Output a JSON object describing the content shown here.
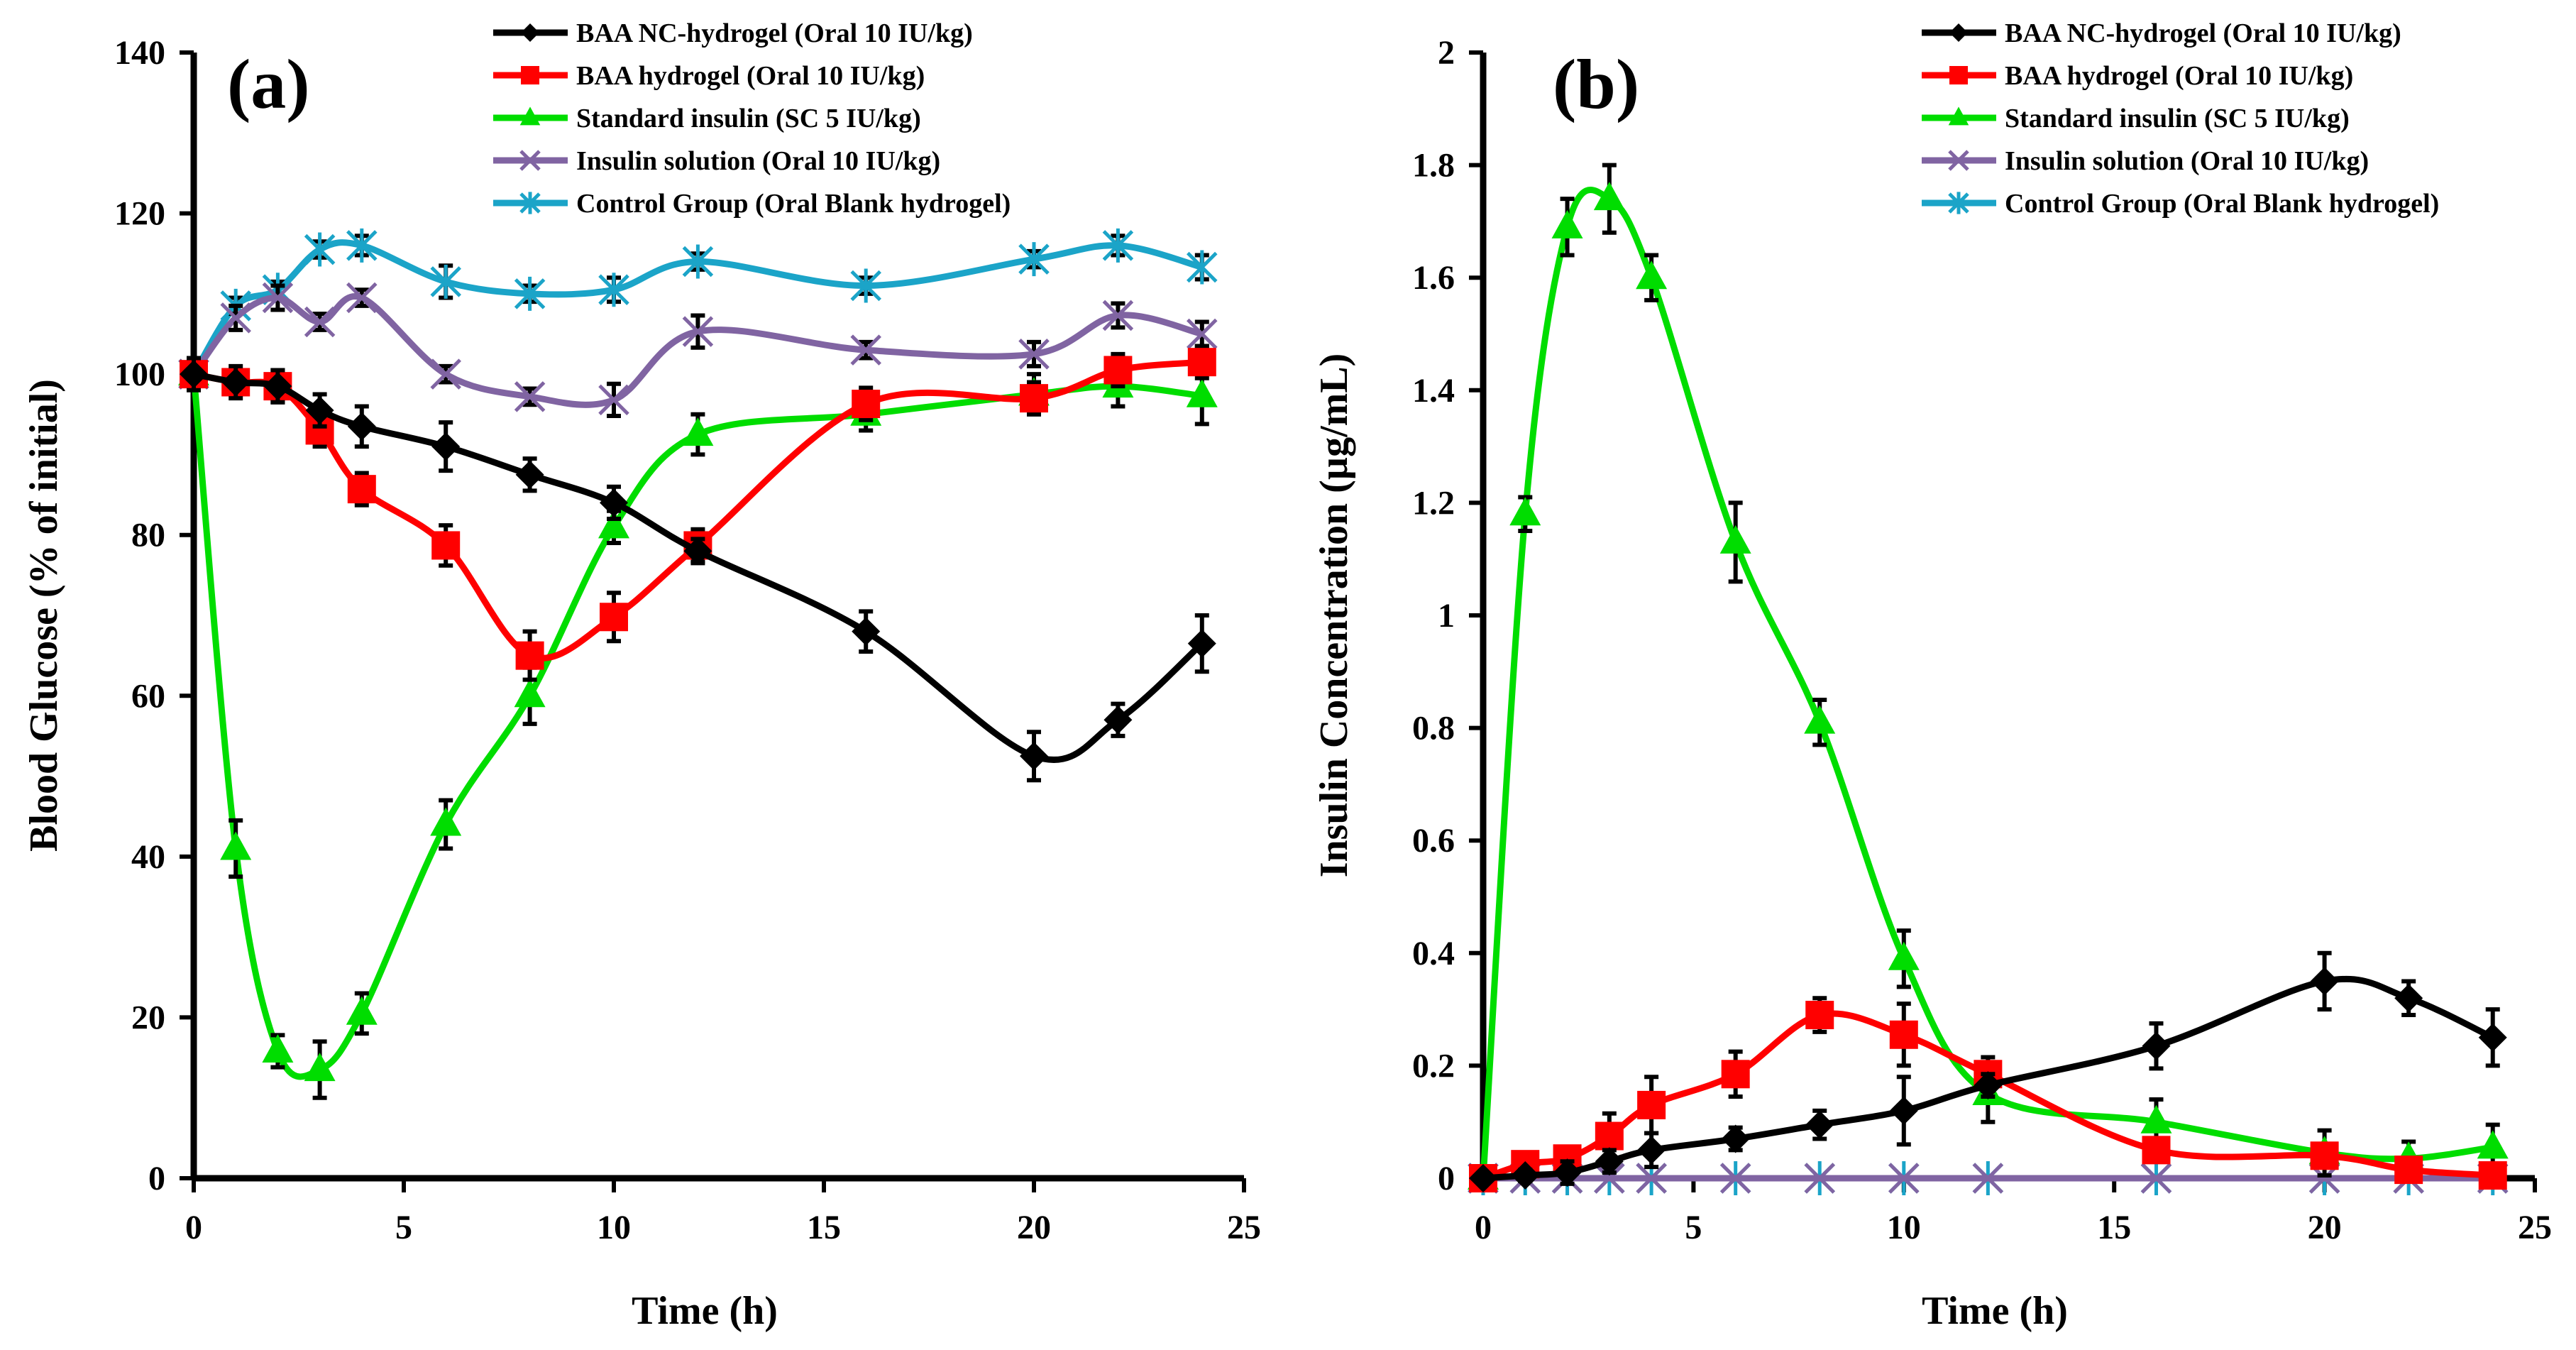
{
  "chart_data": [
    {
      "type": "line",
      "panel_label": "(a)",
      "xlabel": "Time (h)",
      "ylabel": "Blood Glucose (% of initial)",
      "xlim": [
        0,
        25
      ],
      "ylim": [
        0,
        140
      ],
      "xticks": [
        0,
        5,
        10,
        15,
        20,
        25
      ],
      "yticks": [
        0,
        20,
        40,
        60,
        80,
        100,
        120,
        140
      ],
      "grid": false,
      "legend_position": "top-right",
      "x": [
        0,
        1,
        2,
        3,
        4,
        6,
        8,
        10,
        12,
        16,
        20,
        22,
        24
      ],
      "series": [
        {
          "name": "BAA NC-hydrogel (Oral 10 IU/kg)",
          "color": "#000000",
          "marker": "diamond",
          "values": [
            100,
            99,
            98.5,
            95.5,
            93.5,
            91,
            87.5,
            84,
            78,
            68,
            52.5,
            57,
            66.5
          ],
          "errors": [
            2,
            2,
            2,
            2,
            2.5,
            3,
            2,
            2,
            1.5,
            2.5,
            3,
            2,
            3.5
          ]
        },
        {
          "name": "BAA hydrogel (Oral 10 IU/kg)",
          "color": "#ff0000",
          "marker": "square",
          "values": [
            100,
            99,
            98.5,
            93,
            85.7,
            78.7,
            65,
            69.8,
            78.7,
            96.3,
            97,
            100.5,
            101.5
          ],
          "errors": [
            1.5,
            1.5,
            2,
            2,
            2,
            2.5,
            3,
            3,
            2,
            2,
            2,
            2,
            2
          ]
        },
        {
          "name": "Standard insulin (SC 5 IU/kg)",
          "color": "#00dd00",
          "marker": "triangle",
          "values": [
            100,
            41,
            15.8,
            13.5,
            20.5,
            44,
            60,
            81,
            92.5,
            95,
            97.5,
            98.5,
            97.3
          ],
          "errors": [
            1.5,
            3.5,
            2,
            3.5,
            2.5,
            3,
            3.5,
            2,
            2.5,
            2,
            2.5,
            2.5,
            3.5
          ]
        },
        {
          "name": "Insulin solution (Oral 10 IU/kg)",
          "color": "#8064a2",
          "marker": "x",
          "values": [
            100,
            107,
            109.5,
            106.5,
            109.5,
            100,
            97.2,
            96.8,
            105.3,
            103,
            102.5,
            107.3,
            105
          ],
          "errors": [
            1,
            1.5,
            1.5,
            1,
            1,
            1,
            1,
            2,
            2,
            1,
            1.5,
            1.5,
            1.5
          ]
        },
        {
          "name": "Control Group (Oral Blank hydrogel)",
          "color": "#1ba4c8",
          "marker": "star",
          "values": [
            100,
            108.5,
            110.5,
            115.5,
            116,
            111.5,
            110,
            110.5,
            114,
            111,
            114.3,
            116,
            113.3
          ],
          "errors": [
            1,
            1,
            1,
            1,
            1.2,
            2,
            1,
            1.5,
            1,
            1,
            1,
            1.2,
            1.5
          ]
        }
      ]
    },
    {
      "type": "line",
      "panel_label": "(b)",
      "xlabel": "Time (h)",
      "ylabel": "Insulin Concentration (µg/mL)",
      "xlim": [
        0,
        25
      ],
      "ylim": [
        0,
        2
      ],
      "xticks": [
        0,
        5,
        10,
        15,
        20,
        25
      ],
      "yticks": [
        0,
        0.2,
        0.4,
        0.6,
        0.8,
        1,
        1.2,
        1.4,
        1.6,
        1.8,
        2
      ],
      "grid": false,
      "legend_position": "top-right",
      "x": [
        0,
        1,
        2,
        3,
        4,
        6,
        8,
        10,
        12,
        16,
        20,
        22,
        24
      ],
      "series": [
        {
          "name": "BAA NC-hydrogel (Oral 10 IU/kg)",
          "color": "#000000",
          "marker": "diamond",
          "values": [
            0,
            0.005,
            0.01,
            0.03,
            0.05,
            0.07,
            0.095,
            0.12,
            0.165,
            0.235,
            0.35,
            0.32,
            0.25
          ],
          "errors": [
            0,
            0.01,
            0.02,
            0.02,
            0.03,
            0.02,
            0.025,
            0.06,
            0.02,
            0.04,
            0.05,
            0.03,
            0.05
          ]
        },
        {
          "name": "BAA hydrogel (Oral 10 IU/kg)",
          "color": "#ff0000",
          "marker": "square",
          "values": [
            0,
            0.025,
            0.035,
            0.075,
            0.13,
            0.185,
            0.29,
            0.255,
            0.185,
            0.05,
            0.04,
            0.015,
            0.005
          ],
          "errors": [
            0,
            0.01,
            0.02,
            0.04,
            0.05,
            0.04,
            0.03,
            0.055,
            0.03,
            0.02,
            0.02,
            0.01,
            0.01
          ]
        },
        {
          "name": "Standard insulin (SC 5 IU/kg)",
          "color": "#00dd00",
          "marker": "triangle",
          "values": [
            0,
            1.18,
            1.69,
            1.74,
            1.6,
            1.13,
            0.81,
            0.39,
            0.15,
            0.1,
            0.045,
            0.035,
            0.055
          ],
          "errors": [
            0,
            0.03,
            0.05,
            0.06,
            0.04,
            0.07,
            0.04,
            0.05,
            0.05,
            0.04,
            0.04,
            0.03,
            0.04
          ]
        },
        {
          "name": "Insulin solution (Oral 10 IU/kg)",
          "color": "#8064a2",
          "marker": "x",
          "values": [
            0,
            0,
            0,
            0,
            0,
            0,
            0,
            0,
            0,
            0,
            0,
            0,
            0
          ],
          "errors": [
            0,
            0,
            0,
            0,
            0,
            0,
            0,
            0,
            0,
            0,
            0,
            0,
            0
          ]
        },
        {
          "name": "Control Group (Oral Blank hydrogel)",
          "color": "#1ba4c8",
          "marker": "star",
          "values": [
            0,
            0,
            0,
            0,
            0,
            0,
            0,
            0,
            0,
            0,
            0,
            0,
            0
          ],
          "errors": [
            0,
            0,
            0,
            0,
            0,
            0,
            0,
            0,
            0,
            0,
            0,
            0,
            0
          ]
        }
      ]
    }
  ]
}
